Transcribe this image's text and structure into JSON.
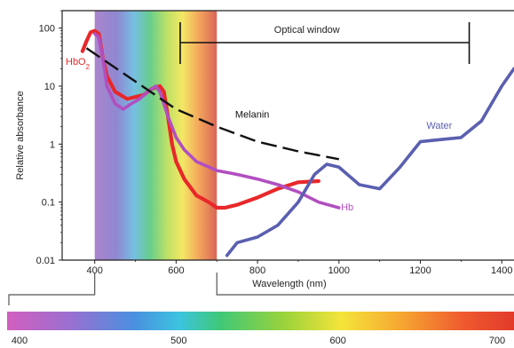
{
  "chart_data": {
    "type": "line",
    "title": "",
    "xlabel": "Wavelength (nm)",
    "ylabel": "Relative absorbance",
    "xlim": [
      320,
      1430
    ],
    "ylim": [
      0.01,
      200
    ],
    "yscale": "log",
    "x_ticks": [
      400,
      600,
      800,
      1000,
      1200,
      1400
    ],
    "y_ticks": [
      {
        "value": 0.01,
        "label": "0.01"
      },
      {
        "value": 0.1,
        "label": "0.1"
      },
      {
        "value": 1,
        "label": "1"
      },
      {
        "value": 10,
        "label": "10"
      },
      {
        "value": 100,
        "label": "100"
      }
    ],
    "visible_spectrum_nm": [
      400,
      700
    ],
    "optical_window": {
      "label": "Optical window",
      "x_range": [
        610,
        1320
      ],
      "y": 70
    },
    "series": [
      {
        "name": "HbO",
        "label": "HbO",
        "label_sub": "2",
        "color": "#e8282a",
        "points": [
          [
            370,
            40
          ],
          [
            380,
            60
          ],
          [
            390,
            85
          ],
          [
            400,
            90
          ],
          [
            410,
            80
          ],
          [
            420,
            30
          ],
          [
            430,
            15
          ],
          [
            450,
            8
          ],
          [
            480,
            6
          ],
          [
            500,
            6.5
          ],
          [
            520,
            7
          ],
          [
            540,
            9
          ],
          [
            560,
            10
          ],
          [
            570,
            8
          ],
          [
            580,
            3
          ],
          [
            590,
            1
          ],
          [
            600,
            0.5
          ],
          [
            620,
            0.25
          ],
          [
            650,
            0.13
          ],
          [
            680,
            0.1
          ],
          [
            700,
            0.08
          ],
          [
            720,
            0.08
          ],
          [
            750,
            0.09
          ],
          [
            800,
            0.12
          ],
          [
            850,
            0.17
          ],
          [
            900,
            0.22
          ],
          [
            950,
            0.23
          ]
        ]
      },
      {
        "name": "Hb",
        "label": "Hb",
        "color": "#b14fc0",
        "points": [
          [
            400,
            80
          ],
          [
            410,
            70
          ],
          [
            420,
            30
          ],
          [
            430,
            10
          ],
          [
            450,
            5
          ],
          [
            470,
            4
          ],
          [
            490,
            5
          ],
          [
            510,
            6
          ],
          [
            530,
            8
          ],
          [
            550,
            10
          ],
          [
            560,
            8
          ],
          [
            580,
            3
          ],
          [
            600,
            1.3
          ],
          [
            620,
            0.8
          ],
          [
            650,
            0.5
          ],
          [
            700,
            0.35
          ],
          [
            750,
            0.3
          ],
          [
            800,
            0.25
          ],
          [
            850,
            0.2
          ],
          [
            900,
            0.15
          ],
          [
            950,
            0.1
          ],
          [
            1000,
            0.08
          ]
        ]
      },
      {
        "name": "Water",
        "label": "Water",
        "color": "#5a5fb0",
        "points": [
          [
            725,
            0.012
          ],
          [
            750,
            0.02
          ],
          [
            800,
            0.025
          ],
          [
            850,
            0.04
          ],
          [
            900,
            0.1
          ],
          [
            940,
            0.3
          ],
          [
            970,
            0.45
          ],
          [
            1000,
            0.4
          ],
          [
            1050,
            0.2
          ],
          [
            1100,
            0.17
          ],
          [
            1150,
            0.4
          ],
          [
            1200,
            1.1
          ],
          [
            1250,
            1.2
          ],
          [
            1300,
            1.3
          ],
          [
            1350,
            2.5
          ],
          [
            1400,
            10
          ],
          [
            1430,
            20
          ]
        ]
      },
      {
        "name": "Melanin",
        "label": "Melanin",
        "color": "#111111",
        "dashed": true,
        "points": [
          [
            380,
            45
          ],
          [
            500,
            12
          ],
          [
            600,
            4
          ],
          [
            700,
            2
          ],
          [
            800,
            1.1
          ],
          [
            900,
            0.75
          ],
          [
            1000,
            0.55
          ]
        ]
      }
    ],
    "spectrum_bar": {
      "ticks": [
        400,
        500,
        600,
        700
      ]
    }
  }
}
